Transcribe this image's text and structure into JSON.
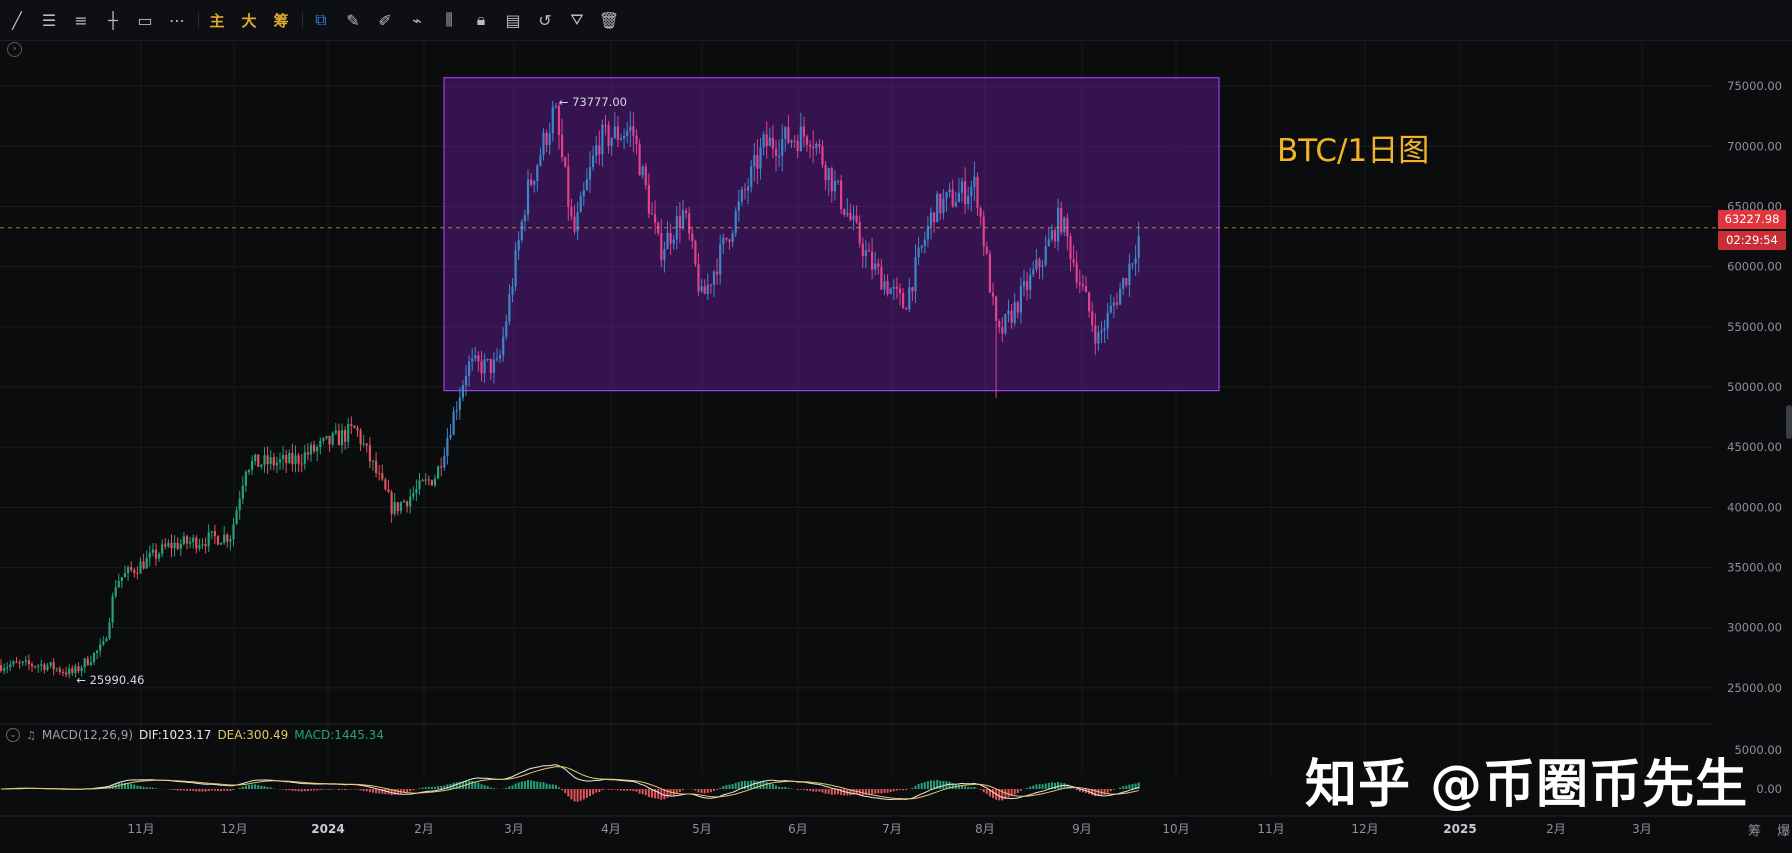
{
  "toolbar": {
    "icons": [
      "trend-line-icon",
      "horizontal-lines-icon",
      "parallel-channel-icon",
      "horizontal-ray-icon",
      "rectangle-icon",
      "more-icon"
    ],
    "text_buttons": [
      "主",
      "大",
      "筹"
    ],
    "right_icons": [
      "replay-icon",
      "brush-icon",
      "measure-icon",
      "pen-icon",
      "pattern-icon",
      "lock-icon",
      "note-icon",
      "magnet-icon",
      "filter-icon",
      "trash-icon"
    ]
  },
  "chart_label": "BTC/1日图",
  "watermark": "知乎 @币圈币先生",
  "price_tag": "63227.98",
  "countdown": "02:29:54",
  "high_label": "← 73777.00",
  "low_label": "← 25990.46",
  "bottom_right": "筹 爆",
  "colors": {
    "up": "#26a17b",
    "down": "#e2535b",
    "box": "#9b3fe8",
    "dif": "#e9e9e9",
    "dea": "#e7c56b",
    "accent": "#f0b428"
  },
  "macd": {
    "name": "MACD(12,26,9)",
    "dif": "DIF:1023.17",
    "dea": "DEA:300.49",
    "macd": "MACD:1445.34",
    "ticks": [
      "5000.00",
      "0.00"
    ]
  },
  "chart_data": {
    "type": "candlestick",
    "y_axis_ticks": [
      "75000.00",
      "70000.00",
      "65000.00",
      "60000.00",
      "55000.00",
      "50000.00",
      "45000.00",
      "40000.00",
      "35000.00",
      "30000.00",
      "25000.00"
    ],
    "ylim": [
      23000,
      78000
    ],
    "x_axis_ticks": [
      "11月",
      "12月",
      "2024",
      "2月",
      "3月",
      "4月",
      "5月",
      "6月",
      "7月",
      "8月",
      "9月",
      "10月",
      "11月",
      "12月",
      "2025",
      "2月",
      "3月"
    ],
    "current_price": 63227.98,
    "period_high": 73777.0,
    "period_low": 25990.46,
    "range_box": {
      "y_top": 75700,
      "y_bottom": 49700
    },
    "anchors": [
      {
        "label": "10/01",
        "close": 26900
      },
      {
        "label": "10/10",
        "close": 26200
      },
      {
        "label": "10/20",
        "close": 28500
      },
      {
        "label": "10/24",
        "close": 33900
      },
      {
        "label": "11/10",
        "close": 36800
      },
      {
        "label": "11/30",
        "close": 37700
      },
      {
        "label": "12/05",
        "close": 43600
      },
      {
        "label": "12/20",
        "close": 43800
      },
      {
        "label": "01/10",
        "close": 46500
      },
      {
        "label": "01/22",
        "close": 39800
      },
      {
        "label": "02/05",
        "close": 42700
      },
      {
        "label": "02/15",
        "close": 51800
      },
      {
        "label": "02/25",
        "close": 51700
      },
      {
        "label": "03/05",
        "close": 66000
      },
      {
        "label": "03/14",
        "close": 73100
      },
      {
        "label": "03/20",
        "close": 62500
      },
      {
        "label": "03/28",
        "close": 70500
      },
      {
        "label": "04/08",
        "close": 71400
      },
      {
        "label": "04/17",
        "close": 61300
      },
      {
        "label": "04/25",
        "close": 64500
      },
      {
        "label": "05/01",
        "close": 57200
      },
      {
        "label": "05/15",
        "close": 66300
      },
      {
        "label": "05/21",
        "close": 70100
      },
      {
        "label": "06/05",
        "close": 71100
      },
      {
        "label": "06/24",
        "close": 60300
      },
      {
        "label": "07/05",
        "close": 56700
      },
      {
        "label": "07/15",
        "close": 64800
      },
      {
        "label": "07/29",
        "close": 66800
      },
      {
        "label": "08/05",
        "close": 54000
      },
      {
        "label": "08/20",
        "close": 61000
      },
      {
        "label": "08/25",
        "close": 64200
      },
      {
        "label": "09/06",
        "close": 53900
      },
      {
        "label": "09/15",
        "close": 59200
      },
      {
        "label": "09/20",
        "close": 63200
      }
    ]
  }
}
